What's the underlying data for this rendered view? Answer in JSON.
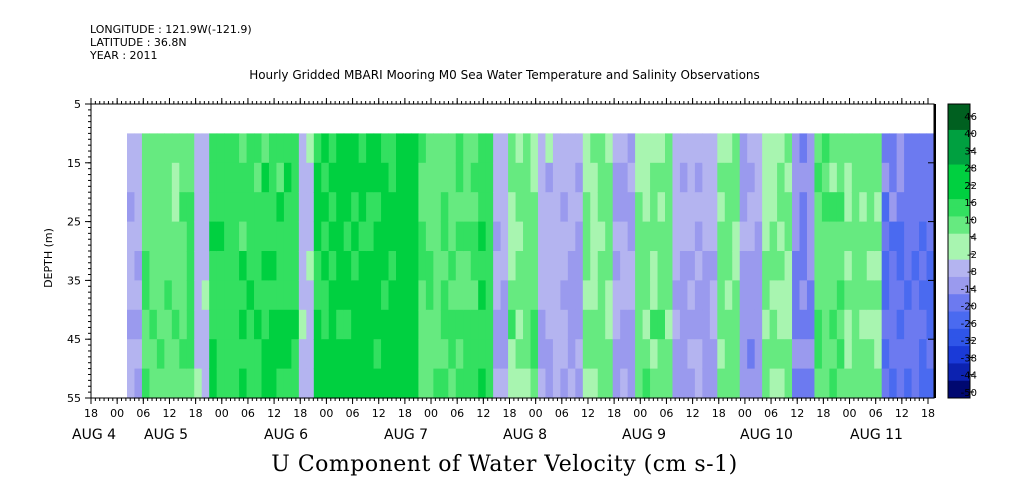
{
  "header": {
    "longitude": "LONGITUDE : 121.9W(-121.9)",
    "latitude": "LATITUDE : 36.8N",
    "year": "YEAR : 2011",
    "title": "Hourly Gridded MBARI Mooring M0 Sea Water Temperature and Salinity Observations"
  },
  "chart_data": {
    "type": "heatmap",
    "title": "U Component of Water Velocity (cm s-1)",
    "ylabel": "DEPTH (m)",
    "xlabel": "",
    "y_ticks": [
      "5",
      "15",
      "25",
      "35",
      "45",
      "55"
    ],
    "x_hour_ticks": [
      "18",
      "00",
      "06",
      "12",
      "18",
      "00",
      "06",
      "12",
      "18",
      "00",
      "06",
      "12",
      "18",
      "00",
      "06",
      "12",
      "18",
      "00",
      "06",
      "12",
      "18",
      "00",
      "06",
      "12",
      "18",
      "00",
      "06",
      "12",
      "18",
      "00",
      "06",
      "12",
      "18"
    ],
    "x_day_labels": [
      "AUG  4",
      "AUG  5",
      "AUG  6",
      "AUG  7",
      "AUG  8",
      "AUG  9",
      "AUG 10",
      "AUG 11"
    ],
    "ylim": [
      5,
      55
    ],
    "data_depth_range": [
      10,
      55
    ],
    "colorbar_labels": [
      "46",
      "40",
      "34",
      "28",
      "22",
      "16",
      "10",
      "4",
      "-2",
      "-8",
      "-14",
      "-20",
      "-26",
      "-32",
      "-38",
      "-44",
      "-50"
    ],
    "colorbar_range": [
      -50,
      49
    ],
    "colors": {
      "strong_positive": "#00c850",
      "positive": "#33e060",
      "weak_positive": "#8ff09a",
      "weak_negative": "#a8a8f0",
      "negative": "#7a7aea",
      "strong_negative": "#3f5ff0"
    },
    "time_segments_description_values": [
      {
        "start_hour": 2,
        "end_hour": 6,
        "value": -6
      },
      {
        "start_hour": 6,
        "end_hour": 20,
        "value": 8
      },
      {
        "start_hour": 20,
        "end_hour": 24,
        "value": -4
      },
      {
        "start_hour": 24,
        "end_hour": 48,
        "value": 14
      },
      {
        "start_hour": 48,
        "end_hour": 52,
        "value": -4
      },
      {
        "start_hour": 52,
        "end_hour": 74,
        "value": 18
      },
      {
        "start_hour": 74,
        "end_hour": 80,
        "value": 22
      },
      {
        "start_hour": 80,
        "end_hour": 96,
        "value": 10
      },
      {
        "start_hour": 96,
        "end_hour": 100,
        "value": 14
      },
      {
        "start_hour": 100,
        "end_hour": 104,
        "value": -6
      },
      {
        "start_hour": 104,
        "end_hour": 112,
        "value": 6
      },
      {
        "start_hour": 112,
        "end_hour": 124,
        "value": -6
      },
      {
        "start_hour": 124,
        "end_hour": 132,
        "value": 4
      },
      {
        "start_hour": 132,
        "end_hour": 138,
        "value": -8
      },
      {
        "start_hour": 138,
        "end_hour": 148,
        "value": 6
      },
      {
        "start_hour": 148,
        "end_hour": 160,
        "value": -8
      },
      {
        "start_hour": 160,
        "end_hour": 166,
        "value": 6
      },
      {
        "start_hour": 166,
        "end_hour": 172,
        "value": -10
      },
      {
        "start_hour": 172,
        "end_hour": 180,
        "value": 4
      },
      {
        "start_hour": 180,
        "end_hour": 186,
        "value": -14
      },
      {
        "start_hour": 186,
        "end_hour": 194,
        "value": 8
      },
      {
        "start_hour": 194,
        "end_hour": 204,
        "value": 6
      },
      {
        "start_hour": 204,
        "end_hour": 218,
        "value": -18
      }
    ]
  }
}
